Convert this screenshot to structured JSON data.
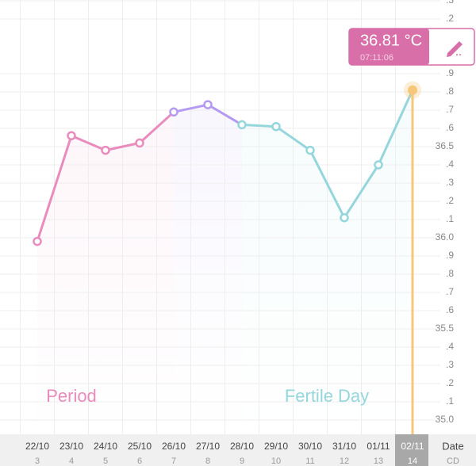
{
  "chart_data": {
    "type": "line",
    "categories": [
      "22/10",
      "23/10",
      "24/10",
      "25/10",
      "26/10",
      "27/10",
      "28/10",
      "29/10",
      "30/10",
      "31/10",
      "01/11",
      "02/11"
    ],
    "cycle_days": [
      "3",
      "4",
      "5",
      "6",
      "7",
      "8",
      "9",
      "10",
      "11",
      "12",
      "13",
      "14"
    ],
    "x_label": "Date",
    "x_label_2": "CD",
    "series": [
      {
        "values": [
          35.98,
          36.56,
          36.48,
          36.52,
          36.69,
          36.73,
          36.62,
          36.61,
          36.48,
          36.11,
          36.4,
          36.81
        ],
        "colors": [
          "#e98bbd",
          "#e98bbd",
          "#e98bbd",
          "#e98bbd",
          "#b49af0",
          "#b49af0",
          "#95d6dc",
          "#95d6dc",
          "#95d6dc",
          "#95d6dc",
          "#95d6dc",
          "#f5c77a"
        ]
      }
    ],
    "ylim": [
      35.0,
      37.3
    ],
    "yticks": [
      {
        "value": 35.0,
        "label": "35.0"
      },
      {
        "value": 35.1,
        "label": ".1"
      },
      {
        "value": 35.2,
        "label": ".2"
      },
      {
        "value": 35.3,
        "label": ".3"
      },
      {
        "value": 35.4,
        "label": ".4"
      },
      35.5,
      {
        "value": 35.6,
        "label": ".6"
      },
      {
        "value": 35.7,
        "label": ".7"
      },
      {
        "value": 35.8,
        "label": ".8"
      },
      {
        "value": 35.9,
        "label": ".9"
      },
      {
        "value": 36.0,
        "label": "36.0"
      },
      {
        "value": 36.1,
        "label": ".1"
      },
      {
        "value": 36.2,
        "label": ".2"
      },
      {
        "value": 36.3,
        "label": ".3"
      },
      {
        "value": 36.4,
        "label": ".4"
      },
      36.5,
      {
        "value": 36.6,
        "label": ".6"
      },
      {
        "value": 36.7,
        "label": ".7"
      },
      {
        "value": 36.8,
        "label": ".8"
      },
      {
        "value": 36.9,
        "label": ".9"
      },
      {
        "value": 37.2,
        "label": ".2"
      },
      {
        "value": 37.3,
        "label": ".3"
      }
    ],
    "annotations": [
      {
        "text": "Period",
        "color": "#e98bbd"
      },
      {
        "text": "Fertile Day",
        "color": "#95d6dc"
      }
    ],
    "tooltip": {
      "value_label": "36.81 °C",
      "time": "07:11:06"
    },
    "grid": true
  }
}
